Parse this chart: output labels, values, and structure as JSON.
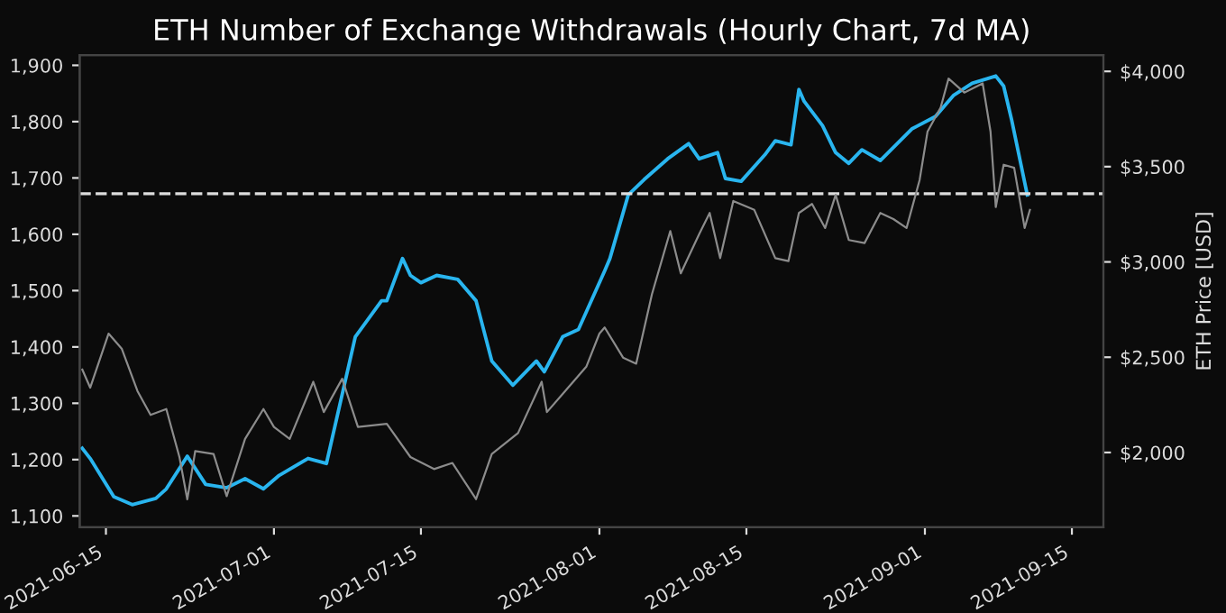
{
  "chart_data": {
    "type": "line",
    "title": "ETH Number of Exchange Withdrawals (Hourly Chart, 7d MA)",
    "y2label": "ETH Price [USD]",
    "xlim": [
      "2021-06-12T12:00",
      "2021-09-18"
    ],
    "xticks": [
      "2021-06-15",
      "2021-07-01",
      "2021-07-15",
      "2021-08-01",
      "2021-08-15",
      "2021-09-01",
      "2021-09-15"
    ],
    "ylim": [
      1080,
      1918
    ],
    "yticks": [
      {
        "value": 1100,
        "label": "1,100"
      },
      {
        "value": 1200,
        "label": "1,200"
      },
      {
        "value": 1300,
        "label": "1,300"
      },
      {
        "value": 1400,
        "label": "1,400"
      },
      {
        "value": 1500,
        "label": "1,500"
      },
      {
        "value": 1600,
        "label": "1,600"
      },
      {
        "value": 1700,
        "label": "1,700"
      },
      {
        "value": 1800,
        "label": "1,800"
      },
      {
        "value": 1900,
        "label": "1,900"
      }
    ],
    "y2lim": [
      1608,
      4085
    ],
    "y2ticks": [
      {
        "value": 2000,
        "label": "$2,000"
      },
      {
        "value": 2500,
        "label": "$2,500"
      },
      {
        "value": 3000,
        "label": "$3,000"
      },
      {
        "value": 3500,
        "label": "$3,500"
      },
      {
        "value": 4000,
        "label": "$4,000"
      }
    ],
    "grid": false,
    "legend": false,
    "marker": "none",
    "line_style": "solid",
    "ref_lines": [
      {
        "axis": "y",
        "value": 1672,
        "color": "#dddddd",
        "line_style": "dashed"
      }
    ],
    "series": [
      {
        "color": "#8c8c8c",
        "axis": "y2",
        "x": [
          "2021-06-12T18:00",
          "2021-06-13T12:00",
          "2021-06-15T06:00",
          "2021-06-16T12:00",
          "2021-06-18T00:00",
          "2021-06-19T06:00",
          "2021-06-20T18:00",
          "2021-06-22T00:00",
          "2021-06-22T18:00",
          "2021-06-23T12:00",
          "2021-06-25T06:00",
          "2021-06-26T12:00",
          "2021-06-28T06:00",
          "2021-06-30T00:00",
          "2021-07-01T00:00",
          "2021-07-02T12:00",
          "2021-07-04T18:00",
          "2021-07-05T18:00",
          "2021-07-07T12:00",
          "2021-07-09T00:00",
          "2021-07-11T18:00",
          "2021-07-14T00:00",
          "2021-07-16T06:00",
          "2021-07-18T00:00",
          "2021-07-20T06:00",
          "2021-07-21T18:00",
          "2021-07-24T06:00",
          "2021-07-26T12:00",
          "2021-07-27T00:00",
          "2021-07-28T12:00",
          "2021-07-30T18:00",
          "2021-08-01T00:00",
          "2021-08-01T12:00",
          "2021-08-03T06:00",
          "2021-08-04T12:00",
          "2021-08-06T00:00",
          "2021-08-07T18:00",
          "2021-08-08T18:00",
          "2021-08-10T12:00",
          "2021-08-11T12:00",
          "2021-08-12T12:00",
          "2021-08-13T18:00",
          "2021-08-15T18:00",
          "2021-08-17T18:00",
          "2021-08-19T00:00",
          "2021-08-20T00:00",
          "2021-08-21T06:00",
          "2021-08-22T12:00",
          "2021-08-23T12:00",
          "2021-08-24T18:00",
          "2021-08-26T06:00",
          "2021-08-27T18:00",
          "2021-08-29T00:00",
          "2021-08-30T06:00",
          "2021-08-31T12:00",
          "2021-09-01T06:00",
          "2021-09-02T12:00",
          "2021-09-03T06:00",
          "2021-09-04T18:00",
          "2021-09-06T12:00",
          "2021-09-07T06:00",
          "2021-09-07T18:00",
          "2021-09-08T12:00",
          "2021-09-09T12:00",
          "2021-09-10T12:00",
          "2021-09-11T00:00"
        ],
        "values": [
          2435,
          2340,
          2624,
          2545,
          2323,
          2197,
          2228,
          1976,
          1754,
          2007,
          1992,
          1771,
          2071,
          2228,
          2134,
          2071,
          2371,
          2212,
          2387,
          2134,
          2150,
          1976,
          1913,
          1945,
          1755,
          1992,
          2102,
          2371,
          2212,
          2307,
          2450,
          2624,
          2656,
          2498,
          2466,
          2830,
          3162,
          2940,
          3146,
          3257,
          3020,
          3320,
          3273,
          3020,
          3004,
          3257,
          3304,
          3178,
          3352,
          3115,
          3099,
          3257,
          3225,
          3178,
          3431,
          3684,
          3810,
          3962,
          3889,
          3937,
          3684,
          3288,
          3510,
          3494,
          3178,
          3273
        ]
      },
      {
        "color": "#29b5ef",
        "axis": "y",
        "x": [
          "2021-06-12T18:00",
          "2021-06-13T12:00",
          "2021-06-15T18:00",
          "2021-06-17T12:00",
          "2021-06-19T18:00",
          "2021-06-20T18:00",
          "2021-06-22T18:00",
          "2021-06-24T12:00",
          "2021-06-26T12:00",
          "2021-06-28T06:00",
          "2021-06-30T00:00",
          "2021-07-01T12:00",
          "2021-07-04T06:00",
          "2021-07-06T00:00",
          "2021-07-08T18:00",
          "2021-07-11T06:00",
          "2021-07-11T18:00",
          "2021-07-13T06:00",
          "2021-07-14T00:00",
          "2021-07-15T00:00",
          "2021-07-16T12:00",
          "2021-07-18T12:00",
          "2021-07-20T06:00",
          "2021-07-21T18:00",
          "2021-07-23T18:00",
          "2021-07-26T00:00",
          "2021-07-26T18:00",
          "2021-07-28T12:00",
          "2021-07-30T00:00",
          "2021-08-01T12:00",
          "2021-08-02T00:00",
          "2021-08-03T18:00",
          "2021-08-05T06:00",
          "2021-08-07T12:00",
          "2021-08-09T12:00",
          "2021-08-10T12:00",
          "2021-08-12T06:00",
          "2021-08-13T00:00",
          "2021-08-14T12:00",
          "2021-08-16T18:00",
          "2021-08-17T18:00",
          "2021-08-19T06:00",
          "2021-08-20T00:00",
          "2021-08-20T12:00",
          "2021-08-22T06:00",
          "2021-08-23T12:00",
          "2021-08-24T18:00",
          "2021-08-26T00:00",
          "2021-08-27T18:00",
          "2021-08-30T18:00",
          "2021-09-02T00:00",
          "2021-09-03T18:00",
          "2021-09-05T12:00",
          "2021-09-07T18:00",
          "2021-09-08T12:00",
          "2021-09-09T06:00",
          "2021-09-10T18:00"
        ],
        "values": [
          1220,
          1202,
          1134,
          1120,
          1131,
          1148,
          1206,
          1156,
          1150,
          1166,
          1148,
          1172,
          1202,
          1193,
          1418,
          1482,
          1482,
          1557,
          1527,
          1514,
          1527,
          1520,
          1482,
          1375,
          1332,
          1375,
          1356,
          1418,
          1431,
          1535,
          1557,
          1670,
          1697,
          1734,
          1761,
          1734,
          1745,
          1699,
          1694,
          1741,
          1766,
          1759,
          1857,
          1836,
          1793,
          1745,
          1726,
          1750,
          1731,
          1787,
          1809,
          1847,
          1868,
          1881,
          1863,
          1804,
          1670
        ]
      }
    ]
  }
}
